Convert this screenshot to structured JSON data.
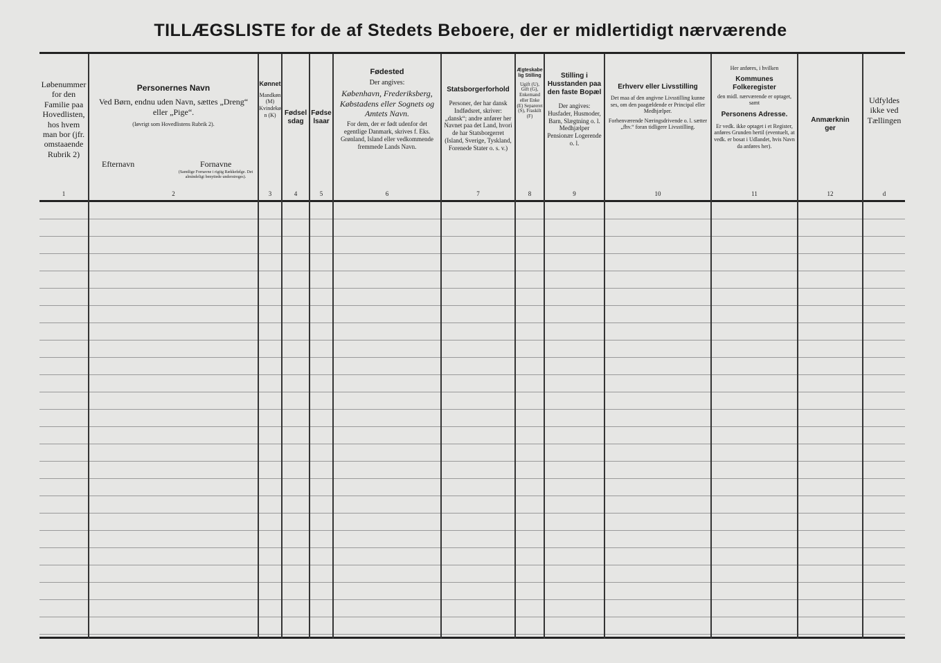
{
  "title": "TILLÆGSLISTE for de af Stedets Beboere, der er midlertidigt nærværende",
  "columns": [
    {
      "number": "1",
      "text": "Løbenummer for den Familie paa Hovedlisten, hos hvem man bor (jfr. omstaaende Rubrik 2)"
    },
    {
      "number": "2",
      "heading": "Personernes Navn",
      "text": "Ved Børn, endnu uden Navn, sættes „Dreng“ eller „Pige“.",
      "note": "(Iøvrigt som Hovedlistens Rubrik 2).",
      "sub_left": "Efternavn",
      "sub_right": "Fornavne",
      "sub_right_note": "(Samtlige Fornavne i rigtig Rækkefølge. Det almindeligt benyttede understreges)."
    },
    {
      "number": "3",
      "heading": "Kønnet",
      "text": "Mandkøn (M) Kvindekøn (K)"
    },
    {
      "number": "4",
      "heading": "Fødselsdag"
    },
    {
      "number": "5",
      "heading": "Fødselsaar"
    },
    {
      "number": "6",
      "heading": "Fødested",
      "text": "Der angives:",
      "italic": "København, Frederiksberg, Købstadens eller Sognets og Amtets Navn.",
      "note": "For dem, der er født udenfor det egentlige Danmark, skrives f. Eks. Grønland, Island eller vedkommende fremmede Lands Navn."
    },
    {
      "number": "7",
      "heading": "Statsborgerforhold",
      "text": "Personer, der har dansk Indfødsret, skriver: „dansk“; andre anfører her Navnet paa det Land, hvori de har Statsborgerret (Island, Sverige, Tyskland, Forenede Stater o. s. v.)"
    },
    {
      "number": "8",
      "heading": "Ægteskabelig Stilling",
      "text": "Ugift (U), Gift (G), Enkemand eller Enke (E) Separeret (S), Fraskilt (F)"
    },
    {
      "number": "9",
      "heading": "Stilling i Husstanden paa den faste Bopæl",
      "text": "Der angives: Husfader, Husmoder, Barn, Slægtning o. l. Medhjælper Pensionær Logerende o. l."
    },
    {
      "number": "10",
      "heading": "Erhverv eller Livsstilling",
      "text": "Det maa af den angivne Livsstilling kunne ses, om den paagældende er Principal eller Medhjælper.",
      "note": "Forhenværende Næringsdrivende o. l. sætter „fhv.“ foran tidligere Livsstilling."
    },
    {
      "number": "11",
      "pre": "Her anføres, i hvilken",
      "heading": "Kommunes Folkeregister",
      "text": "den midl. nærværende er optaget, samt",
      "heading2": "Personens Adresse.",
      "note": "Er vedk. ikke optaget i et Register, anføres Grunden hertil (eventuelt, at vedk. er bosat i Udlandet, hvis Navn da anføres her)."
    },
    {
      "number": "12",
      "heading": "Anmærkninger"
    },
    {
      "number": "d",
      "text": "Udfyldes ikke ved Tællingen"
    }
  ]
}
